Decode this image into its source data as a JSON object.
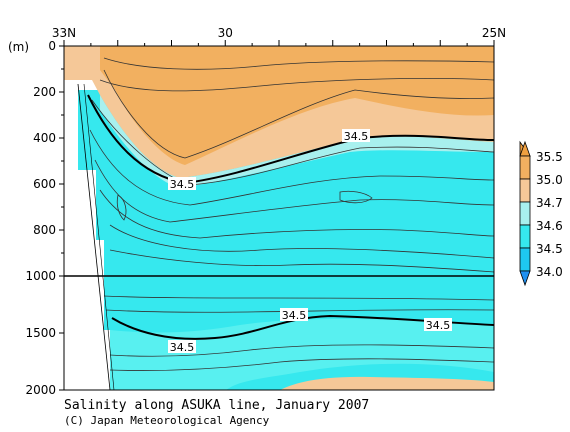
{
  "chart_data": {
    "type": "heatmap",
    "title": "Salinity along ASUKA line, January 2007",
    "credit": "(C) Japan Meteorological Agency",
    "ylabel": "(m)",
    "x_ticks": [
      "33N",
      "30",
      "25N"
    ],
    "y_ticks_upper": [
      "0",
      "200",
      "400",
      "600",
      "800",
      "1000"
    ],
    "y_ticks_lower": [
      "1500",
      "2000"
    ],
    "ylim": [
      0,
      2000
    ],
    "y_break_depth": 1000,
    "contour_labels": [
      "34.5",
      "34.5",
      "34.5",
      "34.5"
    ],
    "legend": {
      "levels": [
        "35.5",
        "35.0",
        "34.7",
        "34.6",
        "34.5",
        "34.0"
      ],
      "colors": {
        "above_35_5": "#f0a040",
        "35_0_to_35_5": "#f2b060",
        "34_7_to_35_0": "#f5c898",
        "34_6_to_34_7": "#a8f0ee",
        "34_5_to_34_6": "#36e8ee",
        "34_0_to_34_5": "#1ec8f0",
        "below_34_0": "#1e90f0"
      }
    }
  }
}
